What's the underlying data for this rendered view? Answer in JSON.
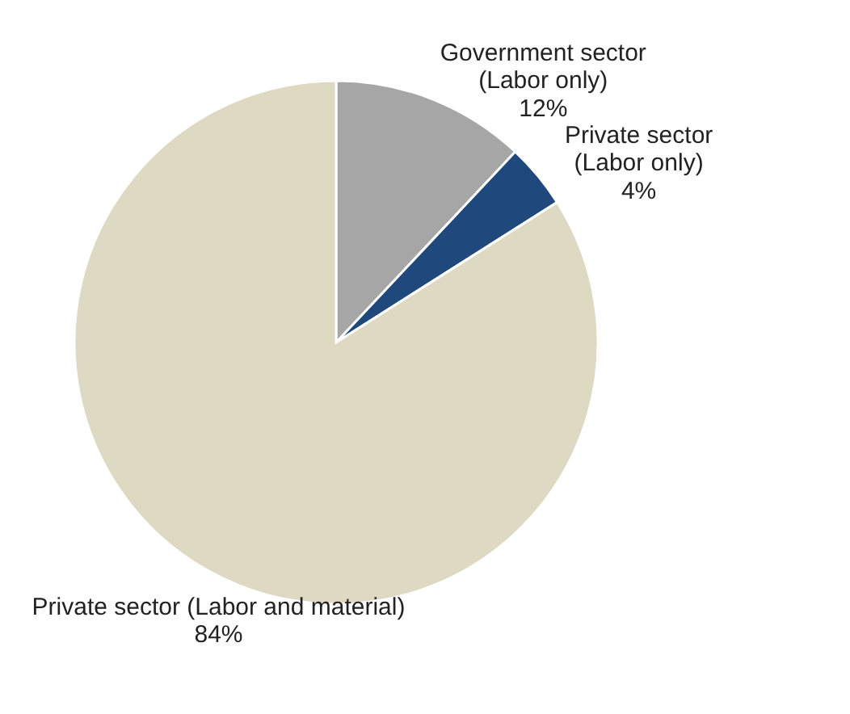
{
  "chart_data": {
    "type": "pie",
    "categories": [
      "Government sector (Labor only)",
      "Private sector (Labor only)",
      "Private sector (Labor and material)"
    ],
    "values": [
      12,
      4,
      84
    ],
    "colors": [
      "#a6a6a6",
      "#1f497d",
      "#ddd9c3"
    ],
    "value_labels": [
      "12%",
      "4%",
      "84%"
    ]
  }
}
